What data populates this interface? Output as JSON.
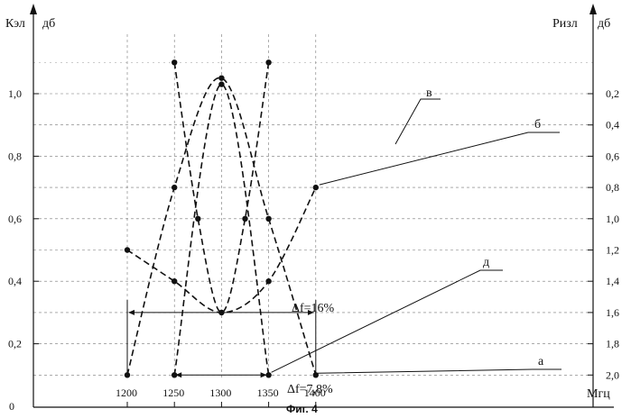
{
  "chart_data": {
    "type": "line",
    "caption": "Фиг. 4",
    "x_unit_label": "Мгц",
    "y_left": {
      "label_top": "Кэл",
      "unit": "дб",
      "ylim": [
        0,
        1.1
      ],
      "ticks": [
        "0",
        "0,2",
        "0,4",
        "0,6",
        "0,8",
        "1,0"
      ]
    },
    "y_right": {
      "label_top": "Ризл",
      "unit": "дб",
      "ticks": [
        "0,2",
        "0,4",
        "0,6",
        "0,8",
        "1,0",
        "1,2",
        "1,4",
        "1,6",
        "1,8",
        "2,0"
      ]
    },
    "x_ticks": [
      "1200",
      "1250",
      "1300",
      "1350",
      "1400"
    ],
    "xlim": [
      1150,
      1450
    ],
    "grid": true,
    "curve_labels": {
      "a": "а",
      "b": "б",
      "v": "в",
      "d": "д"
    },
    "series": [
      {
        "name": "а",
        "x": [
          1200,
          1250,
          1300,
          1350,
          1400
        ],
        "y": [
          0.1,
          0.7,
          1.05,
          0.6,
          0.1
        ]
      },
      {
        "name": "б",
        "x": [
          1200,
          1250,
          1300,
          1350,
          1400
        ],
        "y": [
          0.5,
          0.4,
          0.3,
          0.4,
          0.7
        ]
      },
      {
        "name": "в",
        "x": [
          1250,
          1275,
          1300,
          1325,
          1350
        ],
        "y": [
          1.1,
          0.6,
          0.3,
          0.6,
          1.1
        ]
      },
      {
        "name": "д",
        "x": [
          1250,
          1300,
          1350
        ],
        "y": [
          0.1,
          1.03,
          0.1
        ]
      }
    ],
    "bandwidth_annotations": [
      {
        "label": "Δf=16%",
        "x_from": 1200,
        "x_to": 1400,
        "y": 0.3
      },
      {
        "label": "Δf=7,8%",
        "x_from": 1250,
        "x_to": 1350,
        "y": 0.1
      }
    ]
  }
}
